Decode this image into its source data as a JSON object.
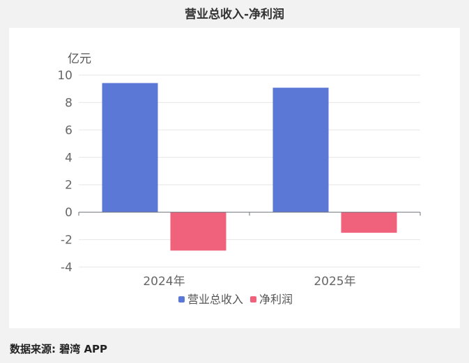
{
  "title": "营业总收入-净利润",
  "source": "数据来源: 碧湾 APP",
  "chart_data": {
    "type": "bar",
    "categories": [
      "2024年",
      "2025年"
    ],
    "series": [
      {
        "name": "营业总收入",
        "values": [
          9.42,
          9.08
        ],
        "color": "#5b78d6"
      },
      {
        "name": "净利润",
        "values": [
          -2.8,
          -1.5
        ],
        "color": "#f0627c"
      }
    ],
    "ylabel": "亿元",
    "ylim": [
      -4,
      10
    ],
    "yticks": [
      -4,
      -2,
      0,
      2,
      4,
      6,
      8,
      10
    ],
    "grid": true,
    "legend": "bottom"
  }
}
